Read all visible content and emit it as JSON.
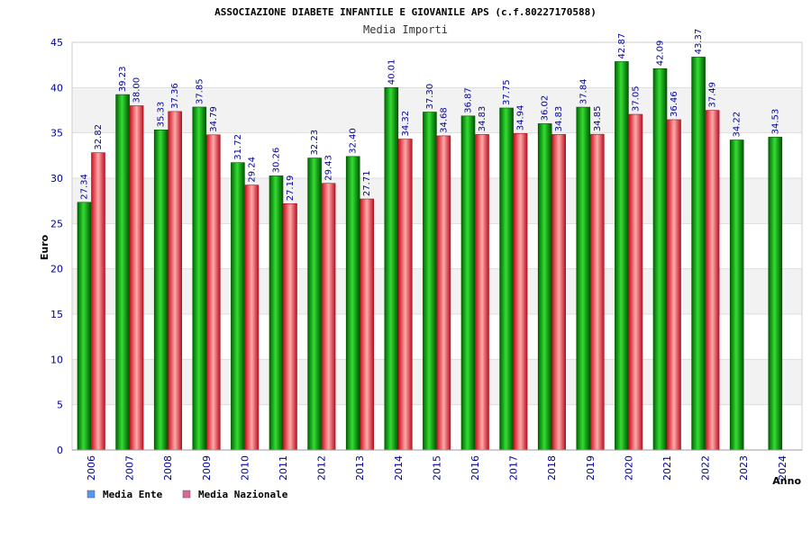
{
  "chart_data": {
    "type": "bar",
    "title": "ASSOCIAZIONE DIABETE INFANTILE E GIOVANILE APS (c.f.80227170588)",
    "subtitle": "Media Importi",
    "xlabel": "Anno",
    "ylabel": "Euro",
    "ylim": [
      0,
      45
    ],
    "yticks": [
      0,
      5,
      10,
      15,
      20,
      25,
      30,
      35,
      40,
      45
    ],
    "grid": true,
    "legend_position": "bottom-left",
    "categories": [
      "2006",
      "2007",
      "2008",
      "2009",
      "2010",
      "2011",
      "2012",
      "2013",
      "2014",
      "2015",
      "2016",
      "2017",
      "2018",
      "2019",
      "2020",
      "2021",
      "2022",
      "2023",
      "2024"
    ],
    "series": [
      {
        "name": "Media Ente",
        "legend_color": "#5599ee",
        "bar_color": "#00aa00",
        "values": [
          27.34,
          39.23,
          35.33,
          37.85,
          31.72,
          30.26,
          32.23,
          32.4,
          40.01,
          37.3,
          36.87,
          37.75,
          36.02,
          37.84,
          42.87,
          42.09,
          43.37,
          34.22,
          34.53
        ],
        "labels": [
          "27.34",
          "39.23",
          "35.33",
          "37.85",
          "31.72",
          "30.26",
          "32.23",
          "32.40",
          "40.01",
          "37.30",
          "36.87",
          "37.75",
          "36.02",
          "37.84",
          "42.87",
          "42.09",
          "43.37",
          "34.22",
          "34.53"
        ]
      },
      {
        "name": "Media Nazionale",
        "legend_color": "#dd6699",
        "bar_color": "#ee2233",
        "values": [
          32.82,
          38.0,
          37.36,
          34.79,
          29.24,
          27.19,
          29.43,
          27.71,
          34.32,
          34.68,
          34.83,
          34.94,
          34.83,
          34.85,
          37.05,
          36.46,
          37.49,
          null,
          null
        ],
        "labels": [
          "32.82",
          "38.00",
          "37.36",
          "34.79",
          "29.24",
          "27.19",
          "29.43",
          "27.71",
          "34.32",
          "34.68",
          "34.83",
          "34.94",
          "34.83",
          "34.85",
          "37.05",
          "36.46",
          "37.49",
          null,
          null
        ]
      }
    ]
  }
}
